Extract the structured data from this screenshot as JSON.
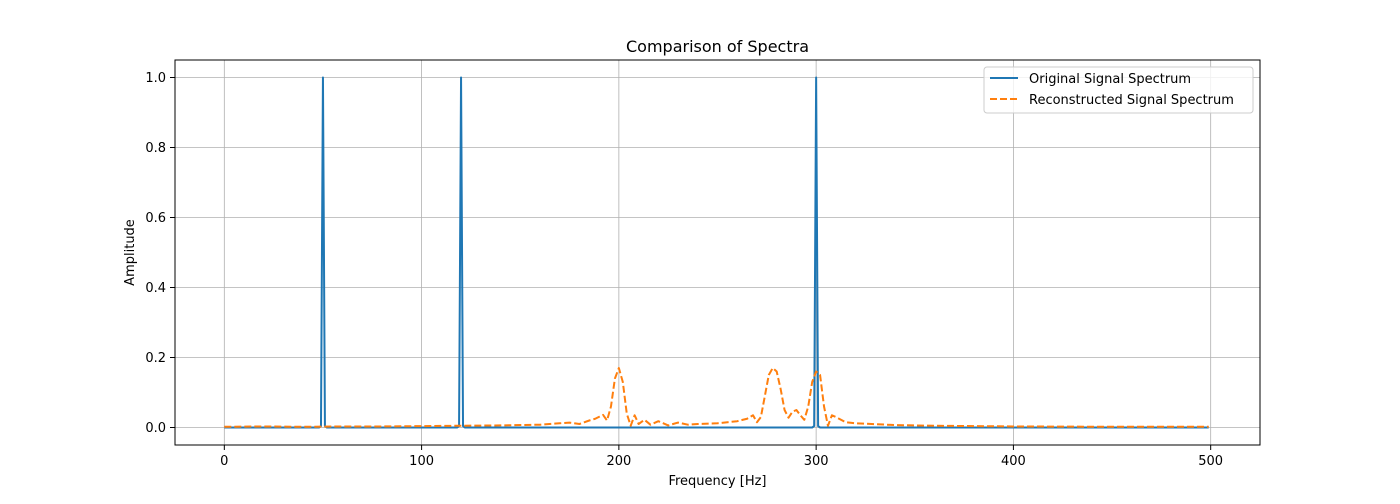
{
  "chart_data": {
    "type": "line",
    "title": "Comparison of Spectra",
    "xlabel": "Frequency [Hz]",
    "ylabel": "Amplitude",
    "xlim": [
      -25,
      525
    ],
    "ylim": [
      -0.05,
      1.05
    ],
    "x_ticks": [
      0,
      100,
      200,
      300,
      400,
      500
    ],
    "x_tick_labels": [
      "0",
      "100",
      "200",
      "300",
      "400",
      "500"
    ],
    "y_ticks": [
      0.0,
      0.2,
      0.4,
      0.6,
      0.8,
      1.0
    ],
    "y_tick_labels": [
      "0.0",
      "0.2",
      "0.4",
      "0.6",
      "0.8",
      "1.0"
    ],
    "grid": true,
    "legend_position": "upper right",
    "series": [
      {
        "name": "Original Signal Spectrum",
        "color": "#1f77b4",
        "style": "solid",
        "x": [
          0,
          48,
          49,
          50,
          51,
          52,
          118,
          119,
          120,
          121,
          122,
          298,
          299,
          300,
          301,
          302,
          499
        ],
        "y": [
          0,
          0,
          0.004,
          1.0,
          0.004,
          0,
          0,
          0.004,
          1.0,
          0.004,
          0,
          0,
          0.004,
          1.0,
          0.004,
          0,
          0
        ]
      },
      {
        "name": "Reconstructed Signal Spectrum",
        "color": "#ff7f0e",
        "style": "dashed",
        "x": [
          0,
          20,
          40,
          60,
          80,
          100,
          120,
          140,
          160,
          170,
          175,
          180,
          185,
          188,
          192,
          194,
          196,
          198,
          200,
          202,
          204,
          206,
          208,
          210,
          213,
          216,
          220,
          225,
          230,
          235,
          240,
          250,
          260,
          265,
          268,
          270,
          272,
          274,
          276,
          278,
          280,
          282,
          284,
          286,
          288,
          290,
          292,
          294,
          296,
          298,
          300,
          302,
          304,
          306,
          308,
          310,
          315,
          320,
          340,
          360,
          400,
          450,
          499
        ],
        "y": [
          0.002,
          0.003,
          0.002,
          0.003,
          0.003,
          0.004,
          0.005,
          0.006,
          0.008,
          0.012,
          0.014,
          0.01,
          0.02,
          0.025,
          0.036,
          0.02,
          0.06,
          0.14,
          0.17,
          0.13,
          0.04,
          0.005,
          0.035,
          0.01,
          0.022,
          0.008,
          0.018,
          0.006,
          0.014,
          0.008,
          0.01,
          0.012,
          0.018,
          0.025,
          0.035,
          0.015,
          0.03,
          0.09,
          0.15,
          0.17,
          0.16,
          0.11,
          0.05,
          0.028,
          0.045,
          0.05,
          0.035,
          0.022,
          0.06,
          0.13,
          0.16,
          0.15,
          0.06,
          0.005,
          0.035,
          0.03,
          0.015,
          0.012,
          0.007,
          0.005,
          0.003,
          0.002,
          0.002
        ]
      }
    ]
  }
}
